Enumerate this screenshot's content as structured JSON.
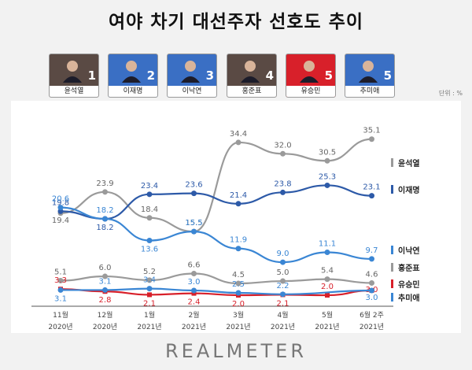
{
  "title": "여야 차기 대선주자 선호도 추이",
  "unit": "단위 : %",
  "footer": "REALMETER",
  "candidates": [
    {
      "name": "윤석열",
      "rank": "1",
      "bg": "#5a4a44"
    },
    {
      "name": "이재명",
      "rank": "2",
      "bg": "#3a6fc4"
    },
    {
      "name": "이낙연",
      "rank": "3",
      "bg": "#3a6fc4"
    },
    {
      "name": "홍준표",
      "rank": "4",
      "bg": "#5a4a44"
    },
    {
      "name": "유승민",
      "rank": "5",
      "bg": "#d8202a"
    },
    {
      "name": "추미애",
      "rank": "5",
      "bg": "#3a6fc4"
    }
  ],
  "chart_data": {
    "type": "line",
    "x": [
      "11월",
      "12월",
      "1월",
      "2월",
      "3월",
      "4월",
      "5월",
      "6월 2주"
    ],
    "years": [
      "2020년",
      "2020년",
      "2021년",
      "2021년",
      "2021년",
      "2021년",
      "2021년",
      "2021년"
    ],
    "ylim": [
      0,
      36
    ],
    "series": [
      {
        "name": "윤석열",
        "color": "#9a9a9a",
        "values": [
          19.4,
          23.9,
          18.4,
          15.5,
          34.4,
          32.0,
          30.5,
          35.1
        ],
        "labels": [
          "19.4",
          "23.9",
          "18.4",
          "15.5",
          "34.4",
          "32.0",
          "30.5",
          "35.1"
        ]
      },
      {
        "name": "이재명",
        "color": "#2d5aa8",
        "values": [
          19.8,
          18.2,
          23.4,
          23.6,
          21.4,
          23.8,
          25.3,
          23.1
        ],
        "labels": [
          "19.8",
          "18.2",
          "23.4",
          "23.6",
          "21.4",
          "23.8",
          "25.3",
          "23.1"
        ]
      },
      {
        "name": "이낙연",
        "color": "#3a86d4",
        "values": [
          20.6,
          18.2,
          13.6,
          15.5,
          11.9,
          9.0,
          11.1,
          9.7
        ],
        "labels": [
          "20.6",
          "18.2",
          "13.6",
          "15.5",
          "11.9",
          "9.0",
          "11.1",
          "9.7"
        ]
      },
      {
        "name": "홍준표",
        "color": "#9a9a9a",
        "values": [
          5.1,
          6.0,
          5.2,
          6.6,
          4.5,
          5.0,
          5.4,
          4.6
        ],
        "labels": [
          "5.1",
          "6.0",
          "5.2",
          "6.6",
          "4.5",
          "5.0",
          "5.4",
          "4.6"
        ]
      },
      {
        "name": "유승민",
        "color": "#d8202a",
        "values": [
          3.3,
          2.8,
          2.1,
          2.4,
          2.0,
          2.1,
          2.0,
          3.0
        ],
        "labels": [
          "3.3",
          "2.8",
          "2.1",
          "2.4",
          "2.0",
          "2.1",
          "2.0",
          "3.0"
        ]
      },
      {
        "name": "추미애",
        "color": "#3a86d4",
        "values": [
          3.1,
          3.1,
          3.4,
          3.0,
          2.5,
          2.2,
          null,
          3.0
        ],
        "labels": [
          "3.1",
          "3.1",
          "3.4",
          "3.0",
          "2.5",
          "2.2",
          "",
          "3.0"
        ]
      }
    ]
  }
}
